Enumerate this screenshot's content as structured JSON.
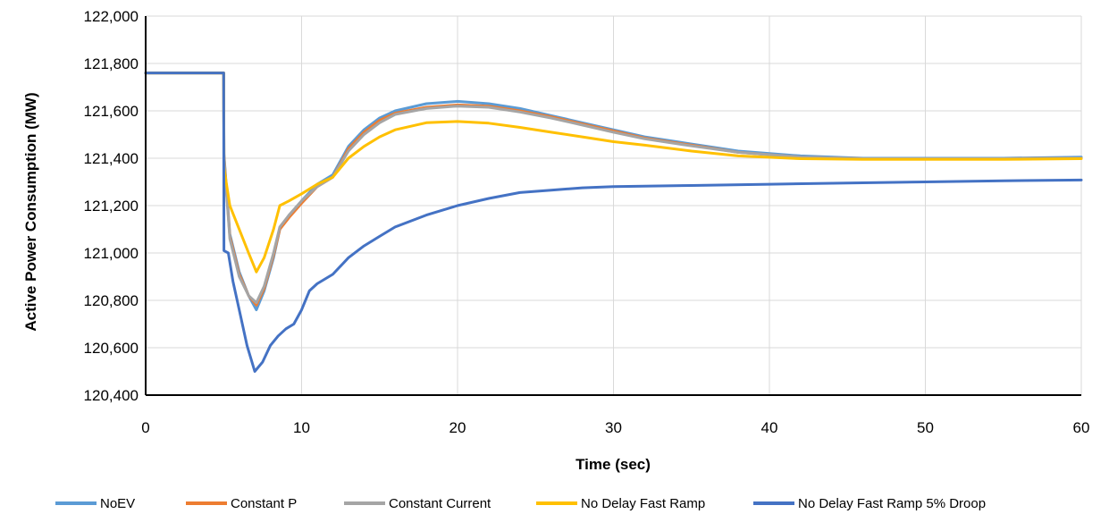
{
  "chart_data": {
    "type": "line",
    "title": "",
    "xlabel": "Time (sec)",
    "ylabel": "Active Power Consumption (MW)",
    "xlim": [
      0,
      60
    ],
    "ylim": [
      120400,
      122000
    ],
    "x_ticks": [
      0,
      10,
      20,
      30,
      40,
      50,
      60
    ],
    "y_ticks": [
      120400,
      120600,
      120800,
      121000,
      121200,
      121400,
      121600,
      121800,
      122000
    ],
    "x_tick_labels": [
      "0",
      "10",
      "20",
      "30",
      "40",
      "50",
      "60"
    ],
    "y_tick_labels": [
      "120,400",
      "120,600",
      "120,800",
      "121,000",
      "121,200",
      "121,400",
      "121,600",
      "121,800",
      "122,000"
    ],
    "grid": "horizontal",
    "legend_position": "bottom",
    "series": [
      {
        "name": "NoEV",
        "color": "#5b9bd5",
        "points": [
          [
            0,
            121760
          ],
          [
            5,
            121760
          ],
          [
            5.02,
            121420
          ],
          [
            5.4,
            121080
          ],
          [
            6,
            120920
          ],
          [
            6.6,
            120820
          ],
          [
            7.1,
            120760
          ],
          [
            7.6,
            120840
          ],
          [
            8.2,
            120980
          ],
          [
            8.6,
            121100
          ],
          [
            9.2,
            121160
          ],
          [
            10,
            121220
          ],
          [
            11,
            121290
          ],
          [
            12,
            121330
          ],
          [
            13,
            121450
          ],
          [
            14,
            121520
          ],
          [
            15,
            121570
          ],
          [
            16,
            121600
          ],
          [
            18,
            121630
          ],
          [
            20,
            121640
          ],
          [
            22,
            121630
          ],
          [
            24,
            121610
          ],
          [
            26,
            121580
          ],
          [
            28,
            121550
          ],
          [
            30,
            121520
          ],
          [
            32,
            121490
          ],
          [
            35,
            121460
          ],
          [
            38,
            121430
          ],
          [
            42,
            121410
          ],
          [
            46,
            121400
          ],
          [
            50,
            121400
          ],
          [
            55,
            121400
          ],
          [
            60,
            121405
          ]
        ]
      },
      {
        "name": "Constant P",
        "color": "#ed7d31",
        "points": [
          [
            0,
            121760
          ],
          [
            5,
            121760
          ],
          [
            5.02,
            121410
          ],
          [
            5.4,
            121070
          ],
          [
            6,
            120910
          ],
          [
            6.6,
            120820
          ],
          [
            7.1,
            120780
          ],
          [
            7.6,
            120850
          ],
          [
            8.2,
            120990
          ],
          [
            8.6,
            121100
          ],
          [
            9.2,
            121150
          ],
          [
            10,
            121210
          ],
          [
            11,
            121280
          ],
          [
            12,
            121320
          ],
          [
            13,
            121440
          ],
          [
            14,
            121510
          ],
          [
            15,
            121560
          ],
          [
            16,
            121590
          ],
          [
            18,
            121615
          ],
          [
            20,
            121625
          ],
          [
            22,
            121620
          ],
          [
            24,
            121600
          ],
          [
            26,
            121575
          ],
          [
            28,
            121545
          ],
          [
            30,
            121515
          ],
          [
            32,
            121485
          ],
          [
            35,
            121455
          ],
          [
            38,
            121425
          ],
          [
            42,
            121405
          ],
          [
            46,
            121398
          ],
          [
            50,
            121398
          ],
          [
            55,
            121398
          ],
          [
            60,
            121400
          ]
        ]
      },
      {
        "name": "Constant Current",
        "color": "#a5a5a5",
        "points": [
          [
            0,
            121760
          ],
          [
            5,
            121760
          ],
          [
            5.02,
            121400
          ],
          [
            5.4,
            121060
          ],
          [
            6,
            120900
          ],
          [
            6.6,
            120820
          ],
          [
            7.1,
            120790
          ],
          [
            7.6,
            120860
          ],
          [
            8.2,
            121000
          ],
          [
            8.6,
            121110
          ],
          [
            9.2,
            121160
          ],
          [
            10,
            121220
          ],
          [
            11,
            121280
          ],
          [
            12,
            121320
          ],
          [
            13,
            121430
          ],
          [
            14,
            121500
          ],
          [
            15,
            121550
          ],
          [
            16,
            121585
          ],
          [
            18,
            121610
          ],
          [
            20,
            121620
          ],
          [
            22,
            121615
          ],
          [
            24,
            121595
          ],
          [
            26,
            121570
          ],
          [
            28,
            121540
          ],
          [
            30,
            121510
          ],
          [
            32,
            121482
          ],
          [
            35,
            121452
          ],
          [
            38,
            121425
          ],
          [
            42,
            121405
          ],
          [
            46,
            121398
          ],
          [
            50,
            121398
          ],
          [
            55,
            121398
          ],
          [
            60,
            121400
          ]
        ]
      },
      {
        "name": "No Delay Fast Ramp",
        "color": "#ffc000",
        "points": [
          [
            0,
            121760
          ],
          [
            5,
            121760
          ],
          [
            5.02,
            121360
          ],
          [
            5.4,
            121200
          ],
          [
            6,
            121100
          ],
          [
            6.6,
            121000
          ],
          [
            7.1,
            120920
          ],
          [
            7.6,
            120980
          ],
          [
            8.2,
            121100
          ],
          [
            8.6,
            121200
          ],
          [
            9.2,
            121220
          ],
          [
            10,
            121250
          ],
          [
            11,
            121290
          ],
          [
            12,
            121320
          ],
          [
            13,
            121400
          ],
          [
            14,
            121450
          ],
          [
            15,
            121490
          ],
          [
            16,
            121520
          ],
          [
            18,
            121550
          ],
          [
            20,
            121555
          ],
          [
            22,
            121548
          ],
          [
            24,
            121530
          ],
          [
            26,
            121510
          ],
          [
            28,
            121490
          ],
          [
            30,
            121470
          ],
          [
            32,
            121455
          ],
          [
            35,
            121430
          ],
          [
            38,
            121410
          ],
          [
            42,
            121398
          ],
          [
            46,
            121395
          ],
          [
            50,
            121395
          ],
          [
            55,
            121395
          ],
          [
            60,
            121398
          ]
        ]
      },
      {
        "name": "No Delay Fast Ramp 5% Droop",
        "color": "#4472c4",
        "points": [
          [
            0,
            121760
          ],
          [
            5,
            121760
          ],
          [
            5.02,
            121010
          ],
          [
            5.3,
            121000
          ],
          [
            5.6,
            120880
          ],
          [
            6,
            120760
          ],
          [
            6.5,
            120610
          ],
          [
            7,
            120500
          ],
          [
            7.5,
            120540
          ],
          [
            8,
            120610
          ],
          [
            8.5,
            120650
          ],
          [
            9,
            120680
          ],
          [
            9.5,
            120700
          ],
          [
            10,
            120760
          ],
          [
            10.5,
            120840
          ],
          [
            11,
            120870
          ],
          [
            12,
            120910
          ],
          [
            13,
            120980
          ],
          [
            14,
            121030
          ],
          [
            15,
            121070
          ],
          [
            16,
            121110
          ],
          [
            18,
            121160
          ],
          [
            20,
            121200
          ],
          [
            22,
            121230
          ],
          [
            24,
            121255
          ],
          [
            26,
            121265
          ],
          [
            28,
            121275
          ],
          [
            30,
            121280
          ],
          [
            35,
            121285
          ],
          [
            40,
            121290
          ],
          [
            45,
            121295
          ],
          [
            50,
            121300
          ],
          [
            55,
            121305
          ],
          [
            60,
            121308
          ]
        ]
      }
    ]
  }
}
